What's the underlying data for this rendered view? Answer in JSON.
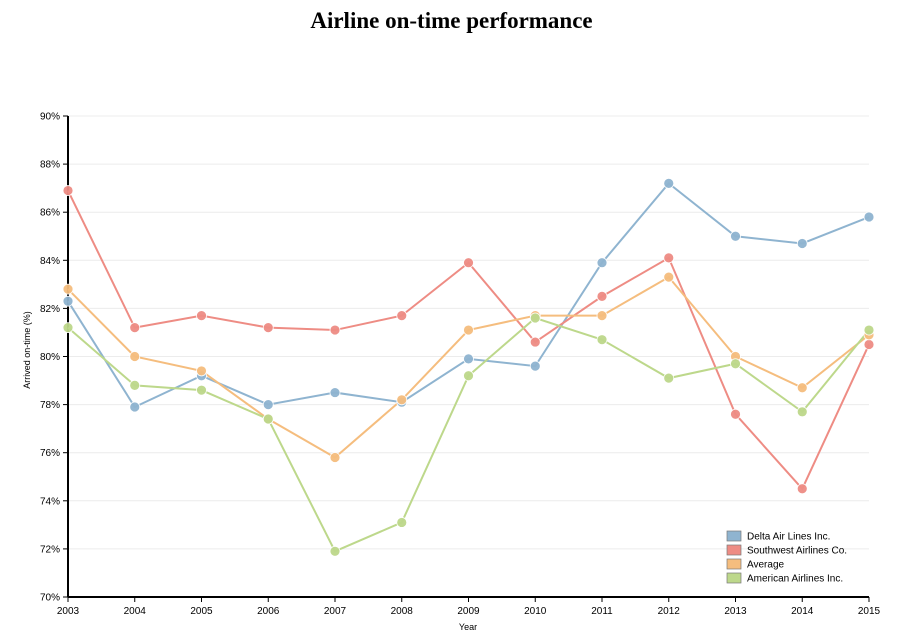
{
  "chart_data": {
    "type": "line",
    "title": "Airline on-time performance",
    "xlabel": "Year",
    "ylabel": "Arrived on-time (%)",
    "x": [
      "2003",
      "2004",
      "2005",
      "2006",
      "2007",
      "2008",
      "2009",
      "2010",
      "2011",
      "2012",
      "2013",
      "2014",
      "2015"
    ],
    "ylim": [
      70,
      90
    ],
    "y_ticks": [
      "70%",
      "72%",
      "74%",
      "76%",
      "78%",
      "80%",
      "82%",
      "84%",
      "86%",
      "88%",
      "90%"
    ],
    "grid": "horizontal",
    "legend_position": "bottom-right",
    "series": [
      {
        "name": "Delta Air Lines Inc.",
        "color": "#8fb4d0",
        "values": [
          82.3,
          77.9,
          79.2,
          78.0,
          78.5,
          78.1,
          79.9,
          79.6,
          83.9,
          87.2,
          85.0,
          84.7,
          85.8
        ]
      },
      {
        "name": "Southwest Airlines Co.",
        "color": "#ee8c84",
        "values": [
          86.9,
          81.2,
          81.7,
          81.2,
          81.1,
          81.7,
          83.9,
          80.6,
          82.5,
          84.1,
          77.6,
          74.5,
          80.5
        ]
      },
      {
        "name": "Average",
        "color": "#f5bd7e",
        "values": [
          82.8,
          80.0,
          79.4,
          77.4,
          75.8,
          78.2,
          81.1,
          81.7,
          81.7,
          83.3,
          80.0,
          78.7,
          80.9
        ]
      },
      {
        "name": "American Airlines Inc.",
        "color": "#bdd88b",
        "values": [
          81.2,
          78.8,
          78.6,
          77.4,
          71.9,
          73.1,
          79.2,
          81.6,
          80.7,
          79.1,
          79.7,
          77.7,
          81.1
        ]
      }
    ]
  }
}
